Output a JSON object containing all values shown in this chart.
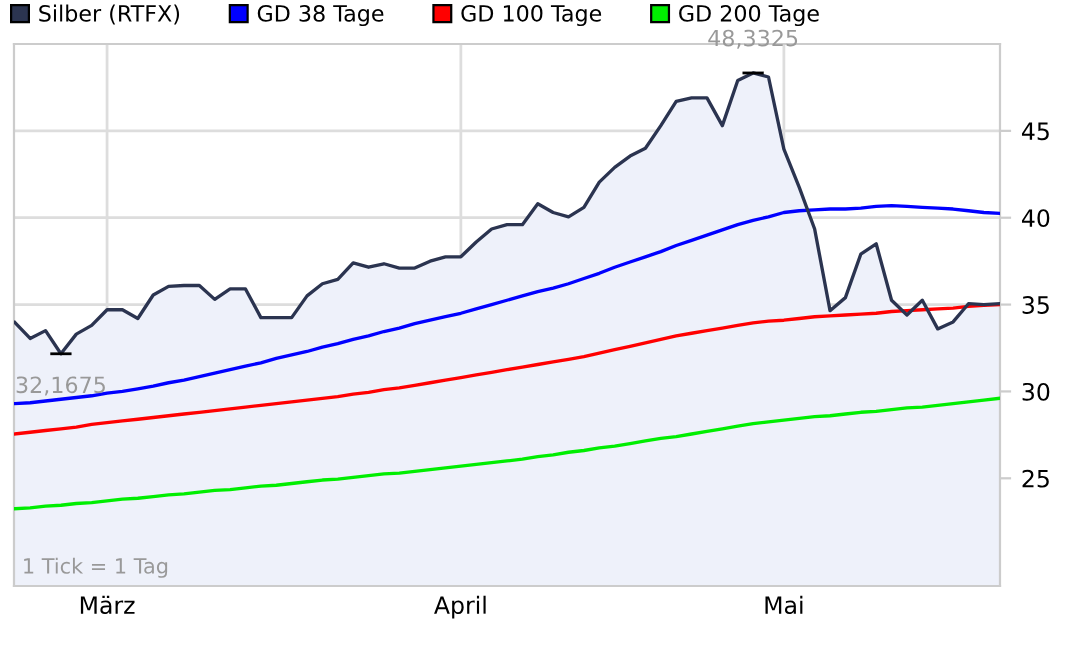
{
  "chart_data": {
    "type": "line",
    "categories": [
      null,
      null,
      null,
      null,
      null,
      null,
      "März",
      null,
      null,
      null,
      null,
      null,
      null,
      null,
      null,
      null,
      null,
      null,
      null,
      null,
      null,
      null,
      null,
      null,
      null,
      null,
      null,
      null,
      null,
      "April",
      null,
      null,
      null,
      null,
      null,
      null,
      null,
      null,
      null,
      null,
      null,
      null,
      null,
      null,
      null,
      null,
      null,
      null,
      null,
      null,
      "Mai",
      null,
      null,
      null,
      null,
      null,
      null,
      null,
      null,
      null,
      null,
      null,
      null,
      null,
      null
    ],
    "series": [
      {
        "name": "Silber (RTFX)",
        "type": "area",
        "color": "#2b3450",
        "values": [
          33.97,
          33.05,
          33.5,
          32.1675,
          33.3,
          33.8,
          34.7,
          34.7,
          34.2,
          35.55,
          36.05,
          36.1,
          36.1,
          35.3,
          35.9,
          35.9,
          34.25,
          34.25,
          34.25,
          35.5,
          36.2,
          36.45,
          37.4,
          37.15,
          37.35,
          37.1,
          37.1,
          37.5,
          37.75,
          37.75,
          38.6,
          39.35,
          39.6,
          39.6,
          40.8,
          40.3,
          40.05,
          40.6,
          42.05,
          42.9,
          43.55,
          44.0,
          45.3,
          46.7,
          46.9,
          46.9,
          45.3,
          47.9,
          48.3325,
          48.1,
          43.95,
          41.75,
          39.35,
          34.65,
          35.4,
          37.9,
          38.5,
          35.25,
          34.4,
          35.25,
          33.6,
          34.0,
          35.05,
          35.0,
          35.05
        ]
      },
      {
        "name": "GD 38 Tage",
        "color": "#0000ff",
        "values": [
          29.3,
          29.35,
          29.45,
          29.55,
          29.65,
          29.75,
          29.9,
          30.0,
          30.15,
          30.3,
          30.5,
          30.65,
          30.85,
          31.05,
          31.25,
          31.45,
          31.65,
          31.9,
          32.1,
          32.3,
          32.55,
          32.75,
          33.0,
          33.2,
          33.45,
          33.65,
          33.9,
          34.1,
          34.3,
          34.5,
          34.75,
          35.0,
          35.25,
          35.5,
          35.75,
          35.95,
          36.2,
          36.5,
          36.8,
          37.15,
          37.45,
          37.75,
          38.05,
          38.4,
          38.7,
          39.0,
          39.3,
          39.6,
          39.85,
          40.05,
          40.3,
          40.4,
          40.45,
          40.5,
          40.5,
          40.55,
          40.65,
          40.7,
          40.65,
          40.6,
          40.55,
          40.5,
          40.4,
          40.3,
          40.25
        ]
      },
      {
        "name": "GD 100 Tage",
        "color": "#ff0000",
        "values": [
          27.55,
          27.65,
          27.75,
          27.85,
          27.95,
          28.1,
          28.2,
          28.3,
          28.4,
          28.5,
          28.6,
          28.7,
          28.8,
          28.9,
          29.0,
          29.1,
          29.2,
          29.3,
          29.4,
          29.5,
          29.6,
          29.7,
          29.85,
          29.95,
          30.1,
          30.2,
          30.35,
          30.5,
          30.65,
          30.8,
          30.95,
          31.1,
          31.25,
          31.4,
          31.55,
          31.7,
          31.85,
          32.0,
          32.2,
          32.4,
          32.6,
          32.8,
          33.0,
          33.2,
          33.35,
          33.5,
          33.65,
          33.8,
          33.95,
          34.05,
          34.1,
          34.2,
          34.3,
          34.35,
          34.4,
          34.45,
          34.5,
          34.6,
          34.65,
          34.7,
          34.75,
          34.8,
          34.9,
          34.95,
          35.0
        ]
      },
      {
        "name": "GD 200 Tage",
        "color": "#00ee00",
        "values": [
          23.25,
          23.3,
          23.4,
          23.45,
          23.55,
          23.6,
          23.7,
          23.8,
          23.85,
          23.95,
          24.05,
          24.1,
          24.2,
          24.3,
          24.35,
          24.45,
          24.55,
          24.6,
          24.7,
          24.8,
          24.9,
          24.95,
          25.05,
          25.15,
          25.25,
          25.3,
          25.4,
          25.5,
          25.6,
          25.7,
          25.8,
          25.9,
          26.0,
          26.1,
          26.25,
          26.35,
          26.5,
          26.6,
          26.75,
          26.85,
          27.0,
          27.15,
          27.3,
          27.4,
          27.55,
          27.7,
          27.85,
          28.0,
          28.15,
          28.25,
          28.35,
          28.45,
          28.55,
          28.6,
          28.7,
          28.8,
          28.85,
          28.95,
          29.05,
          29.1,
          29.2,
          29.3,
          29.4,
          29.5,
          29.6
        ]
      }
    ],
    "ylim": [
      18.8,
      50
    ],
    "yticks": [
      25,
      30,
      35,
      40,
      45
    ],
    "grid": true,
    "legend": "top left",
    "annotations": [
      {
        "text": "32,1675",
        "y": 32.1675
      },
      {
        "text": "48,3325",
        "y": 48.3325
      },
      "1 Tick = 1 Tag"
    ]
  }
}
